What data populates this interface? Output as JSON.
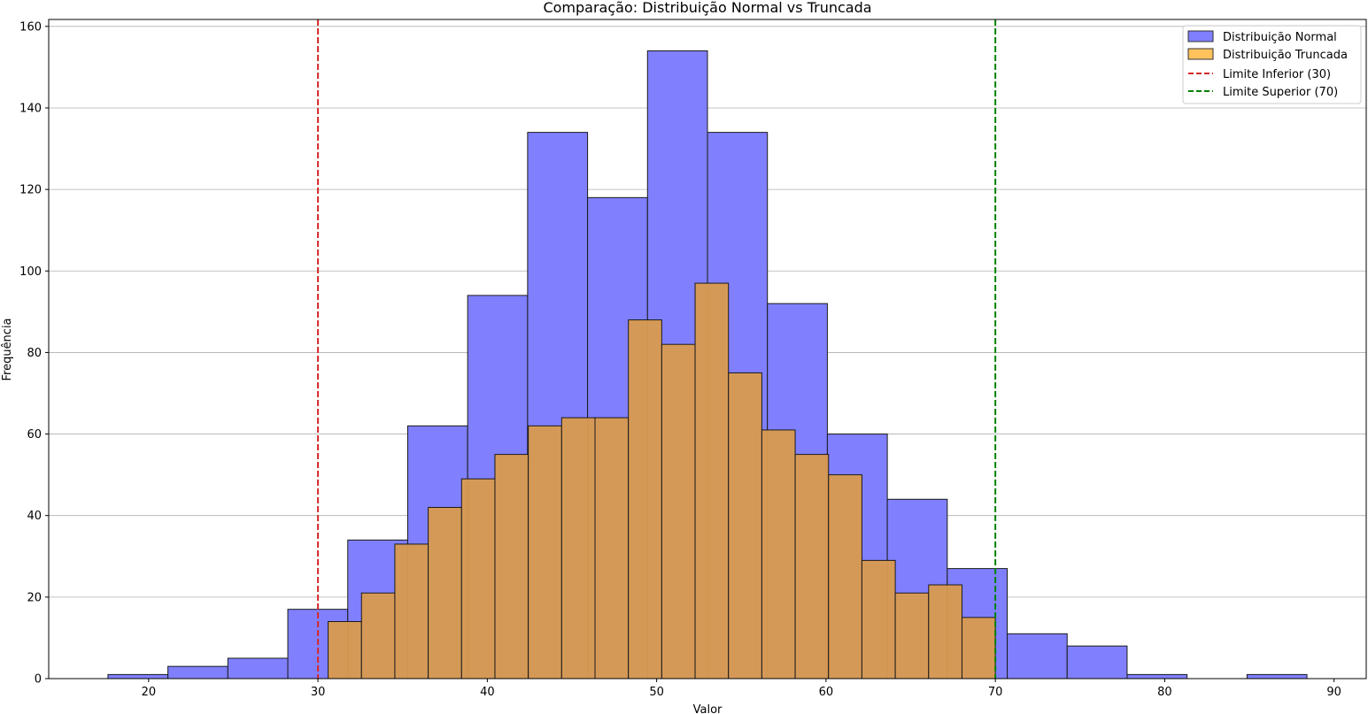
{
  "chart_data": {
    "type": "bar",
    "title": "Comparação: Distribuição Normal vs Truncada",
    "xlabel": "Valor",
    "ylabel": "Frequência",
    "xlim": [
      14.1,
      91.9
    ],
    "ylim": [
      0,
      161.7
    ],
    "xticks": [
      20,
      30,
      40,
      50,
      60,
      70,
      80,
      90
    ],
    "yticks": [
      0,
      20,
      40,
      60,
      80,
      100,
      120,
      140,
      160
    ],
    "grid": "y",
    "legend_position": "top-right",
    "series": [
      {
        "name": "Distribuição Normal",
        "color": "#8080ff",
        "bin_edges": [
          17.6,
          21.14,
          24.68,
          28.22,
          31.76,
          35.3,
          38.84,
          42.38,
          45.92,
          49.46,
          53.0,
          56.54,
          60.08,
          63.62,
          67.16,
          70.7,
          74.24,
          77.78,
          81.32,
          84.86,
          88.4
        ],
        "values": [
          1,
          3,
          5,
          17,
          34,
          62,
          94,
          134,
          118,
          154,
          134,
          92,
          60,
          44,
          27,
          11,
          8,
          1,
          0,
          1
        ]
      },
      {
        "name": "Distribuição Truncada",
        "color": "#d99a4e",
        "legend_color": "#ffc25c",
        "bin_edges": [
          30.6,
          32.57,
          34.54,
          36.51,
          38.48,
          40.45,
          42.42,
          44.39,
          46.36,
          48.33,
          50.3,
          52.27,
          54.24,
          56.21,
          58.18,
          60.15,
          62.12,
          64.09,
          66.06,
          68.03,
          70.0
        ],
        "values": [
          14,
          21,
          33,
          42,
          49,
          55,
          62,
          64,
          64,
          88,
          82,
          97,
          75,
          61,
          55,
          50,
          29,
          21,
          23,
          15
        ]
      }
    ],
    "reference_lines": [
      {
        "name": "Limite Inferior (30)",
        "x": 30,
        "color": "#d62728",
        "style": "dashed"
      },
      {
        "name": "Limite Superior (70)",
        "x": 70,
        "color": "#008000",
        "style": "dashed"
      }
    ]
  }
}
